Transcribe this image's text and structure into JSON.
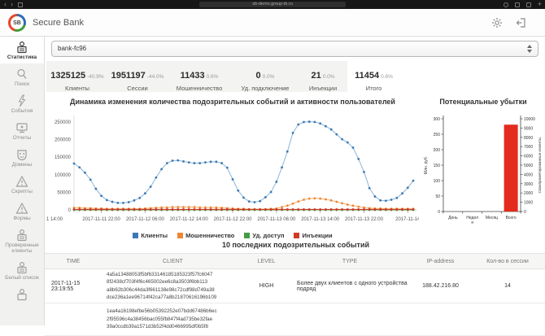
{
  "browser": {
    "url": "sb-demo.group-ib.ru",
    "back_icon": "‹",
    "forward_icon": "›",
    "plus_icon": "+"
  },
  "header": {
    "logo_text": "SB",
    "app_name": "Secure Bank"
  },
  "sidebar": {
    "items": [
      {
        "label": "Статистика",
        "icon": "statistics-icon",
        "active": true
      },
      {
        "label": "Поиск",
        "icon": "search-icon"
      },
      {
        "label": "События",
        "icon": "events-icon"
      },
      {
        "label": "Отчеты",
        "icon": "reports-icon"
      },
      {
        "label": "Домены",
        "icon": "domains-icon"
      },
      {
        "label": "Скрипты",
        "icon": "scripts-icon"
      },
      {
        "label": "Формы",
        "icon": "forms-icon"
      },
      {
        "label": "Проверенные клиенты",
        "icon": "verified-clients-icon"
      },
      {
        "label": "Белый список",
        "icon": "whitelist-icon"
      },
      {
        "label": "",
        "icon": "blacklist-icon"
      }
    ]
  },
  "main": {
    "bank_select": {
      "value": "bank-fc96"
    },
    "stats": [
      {
        "value": "1325125",
        "delta": "-40.9%",
        "label": "Клиенты"
      },
      {
        "value": "1951197",
        "delta": "-44.0%",
        "label": "Сессии"
      },
      {
        "value": "11433",
        "delta": "0.6%",
        "label": "Мошенничество"
      },
      {
        "value": "0",
        "delta": "0.0%",
        "label": "Уд. подключение"
      },
      {
        "value": "21",
        "delta": "0.0%",
        "label": "Инъекции"
      },
      {
        "value": "11454",
        "delta": "0.6%",
        "label": "Итого"
      }
    ]
  },
  "chart_data": [
    {
      "type": "line",
      "title": "Динамика изменения количества подозрительных событий и активности пользователей",
      "ylim": [
        0,
        250000
      ],
      "yticks": [
        0,
        50000,
        100000,
        150000,
        200000,
        250000
      ],
      "x_left_label": "1 14:00",
      "x_ticks": [
        {
          "index": 5,
          "label": "2017-11-11 22:00"
        },
        {
          "index": 13,
          "label": "2017-11-12 06:00"
        },
        {
          "index": 21,
          "label": "2017-11-12 14:00"
        },
        {
          "index": 29,
          "label": "2017-11-12 22:00"
        },
        {
          "index": 37,
          "label": "2017-11-13 06:00"
        },
        {
          "index": 45,
          "label": "2017-11-13 14:00"
        },
        {
          "index": 53,
          "label": "2017-11-13 22:00"
        },
        {
          "index": 61,
          "label": "2017-11-14"
        }
      ],
      "legend_position": "bottom",
      "grid": false,
      "series": [
        {
          "name": "Клиенты",
          "color": "#3c79b2",
          "line_color": "#8ab4d8",
          "values": [
            132000,
            121000,
            106000,
            86000,
            60000,
            40000,
            28000,
            23000,
            20000,
            20000,
            22000,
            27000,
            34000,
            47000,
            66000,
            92000,
            116000,
            133000,
            140000,
            141000,
            138000,
            135000,
            133000,
            133000,
            135000,
            137000,
            137000,
            133000,
            120000,
            87000,
            55000,
            35000,
            24000,
            22000,
            25000,
            36000,
            51000,
            80000,
            121000,
            166000,
            219000,
            243000,
            250000,
            251000,
            250000,
            246000,
            238000,
            229000,
            215000,
            201000,
            192000,
            177000,
            145000,
            108000,
            62000,
            38000,
            27000,
            26000,
            29000,
            34000,
            47000,
            63000,
            83000
          ]
        },
        {
          "name": "Мошенничество",
          "color": "#ee8634",
          "line_color": "#f5b06e",
          "values": [
            6000,
            6000,
            5000,
            5000,
            4000,
            4000,
            3000,
            3000,
            3000,
            3000,
            3000,
            3000,
            3000,
            4000,
            5000,
            6000,
            7000,
            7000,
            8000,
            8000,
            8000,
            8000,
            8000,
            7000,
            7000,
            7000,
            7000,
            6000,
            5000,
            4000,
            3000,
            3000,
            2000,
            2000,
            2000,
            2000,
            3000,
            4000,
            8000,
            12000,
            18000,
            24000,
            29000,
            32000,
            33000,
            32000,
            30000,
            27000,
            23000,
            19000,
            15000,
            12000,
            9000,
            7000,
            5000,
            4000,
            4000,
            3000,
            3000,
            3000,
            3000,
            3000,
            3000
          ]
        },
        {
          "name": "Уд. доступ",
          "color": "#449d44",
          "line_color": "#449d44",
          "values": [
            0,
            0,
            0,
            0,
            0,
            0,
            0,
            0,
            0,
            0,
            0,
            0,
            0,
            0,
            0,
            0,
            0,
            0,
            0,
            0,
            0,
            0,
            0,
            0,
            0,
            0,
            0,
            0,
            0,
            0,
            0,
            0,
            0,
            0,
            0,
            0,
            0,
            0,
            0,
            0,
            0,
            0,
            0,
            0,
            0,
            0,
            0,
            0,
            0,
            0,
            0,
            0,
            0,
            0,
            0,
            0,
            0,
            0,
            0,
            0,
            0,
            0,
            0
          ]
        },
        {
          "name": "Инъекции",
          "color": "#d03a28",
          "line_color": "#d03a28",
          "values": [
            1500,
            1500,
            1500,
            1500,
            1500,
            1500,
            1500,
            1500,
            1500,
            1500,
            1500,
            1500,
            1500,
            1500,
            1500,
            1500,
            1500,
            1500,
            1500,
            1500,
            1500,
            1500,
            1500,
            1500,
            1500,
            1500,
            1500,
            1500,
            1500,
            1500,
            1500,
            1500,
            1500,
            1500,
            1500,
            1500,
            1500,
            1500,
            1500,
            1500,
            1500,
            1500,
            1500,
            1500,
            1500,
            1500,
            1500,
            1500,
            1500,
            1500,
            1500,
            1500,
            1500,
            1500,
            1500,
            1500,
            1500,
            1500,
            1500,
            1500,
            1500,
            1500,
            1500
          ]
        }
      ]
    },
    {
      "type": "bar",
      "title": "Потенциальные убытки",
      "categories": [
        [
          "День"
        ],
        [
          "Недел",
          "я"
        ],
        [
          "Месяц"
        ],
        [
          "Всего"
        ]
      ],
      "values": [
        0,
        0,
        0,
        281
      ],
      "values_right": [
        0,
        0,
        0,
        9300
      ],
      "bar_color": "#e32b1e",
      "ylabel_left": "Млн. руб.",
      "ylabel_right": "Скомпрометированные клиенты",
      "ylim_left": [
        0,
        300
      ],
      "yticks_left": [
        0,
        50,
        100,
        150,
        200,
        250,
        300
      ],
      "ylim_right": [
        0,
        10000
      ],
      "yticks_right": [
        0,
        1000,
        2000,
        3000,
        4000,
        5000,
        6000,
        7000,
        8000,
        9000,
        10000
      ]
    }
  ],
  "table": {
    "title": "10 последних подозрительных событий",
    "columns": [
      "TIME",
      "CLIENT",
      "LEVEL",
      "TYPE",
      "IP-address",
      "Кол-во в сессии"
    ],
    "rows": [
      {
        "time": "2017-11-15 23:19:55",
        "client_lines": [
          "4a5a13488053f5bf633146185185323f57fc6047",
          "8f2438cf703f4f6c465002ee6c8a3503f6bb113",
          "a8b62b306c44da3f661138e98c72cdf98d749a38",
          "dce236a1ee96714f42ca77a8b21870616196b109"
        ],
        "level": "HIGH",
        "type": "Более двух клиентов с одного устройства подряд",
        "ip": "188.42.216.80",
        "count": "14"
      },
      {
        "time": "",
        "client_lines": [
          "1ea4a16198efbe56b05392252e07bdd67486b6ec",
          "2f95596c4a38456bac055fb847f4ad735be32fae",
          "39a0ccdb39a1571d3b52f4dd0466995df0b5f8"
        ],
        "level": "",
        "type": "",
        "ip": "",
        "count": ""
      }
    ]
  }
}
